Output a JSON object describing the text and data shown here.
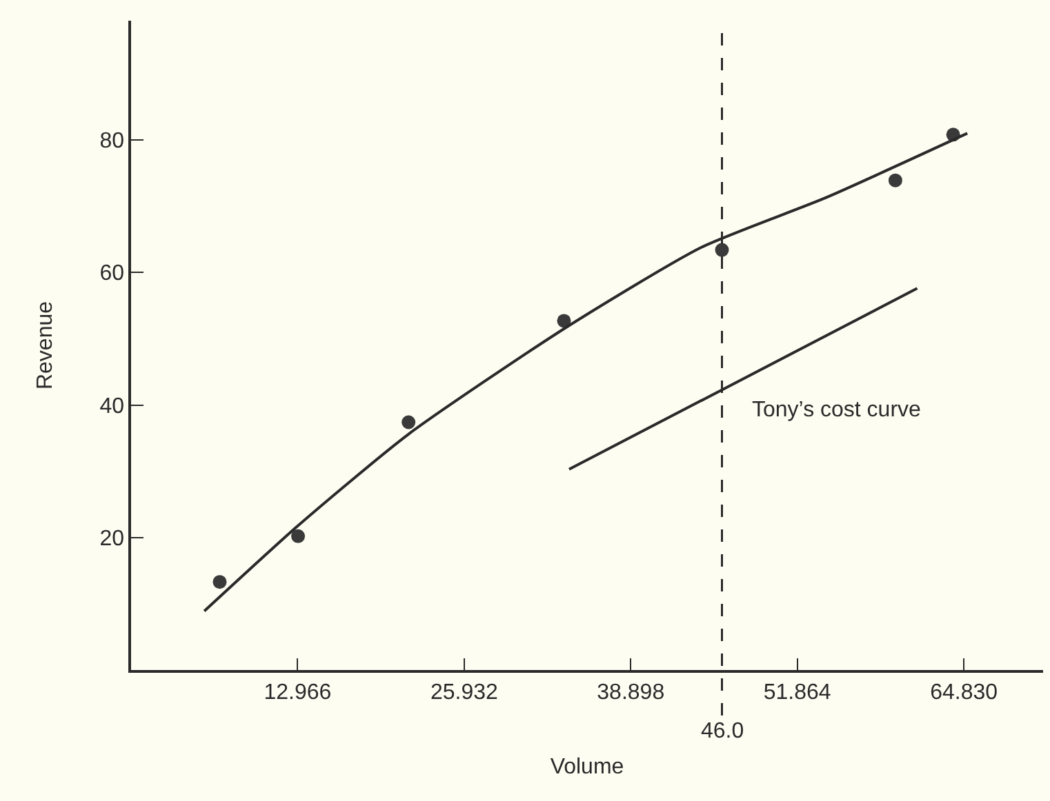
{
  "chart_data": {
    "type": "scatter",
    "xlabel": "Volume",
    "ylabel": "Revenue",
    "xlim": [
      0,
      71
    ],
    "ylim": [
      0,
      98
    ],
    "xticks": [
      12.966,
      25.932,
      38.898,
      51.864,
      {
        "value": 64.83,
        "label": "64.830"
      }
    ],
    "yticks": [
      20,
      40,
      60,
      80
    ],
    "grid": false,
    "marker": "circle",
    "series": [
      {
        "color": "#3a3a3a",
        "x": [
          6.9,
          13.0,
          21.6,
          33.7,
          46.0,
          59.5,
          64.0
        ],
        "values": [
          13.3,
          20.2,
          37.4,
          52.7,
          63.4,
          73.9,
          80.8
        ]
      },
      {
        "type": "line",
        "color": "#2a2a2a",
        "marker": "none",
        "x": [
          5.7,
          13.0,
          21.6,
          33.7,
          44.4,
          54.1,
          65.1
        ],
        "values": [
          8.9,
          21.8,
          35.6,
          51.5,
          63.8,
          71.3,
          81.0
        ]
      },
      {
        "type": "line",
        "name": "Tony’s cost curve",
        "color": "#2a2a2a",
        "marker": "none",
        "x": [
          34.1,
          61.2
        ],
        "values": [
          30.3,
          57.6
        ]
      }
    ],
    "ref_lines": [
      {
        "axis": "x",
        "value": 46,
        "label": "46.0",
        "color": "#2a2a2a",
        "line_style": "dashed"
      }
    ]
  }
}
